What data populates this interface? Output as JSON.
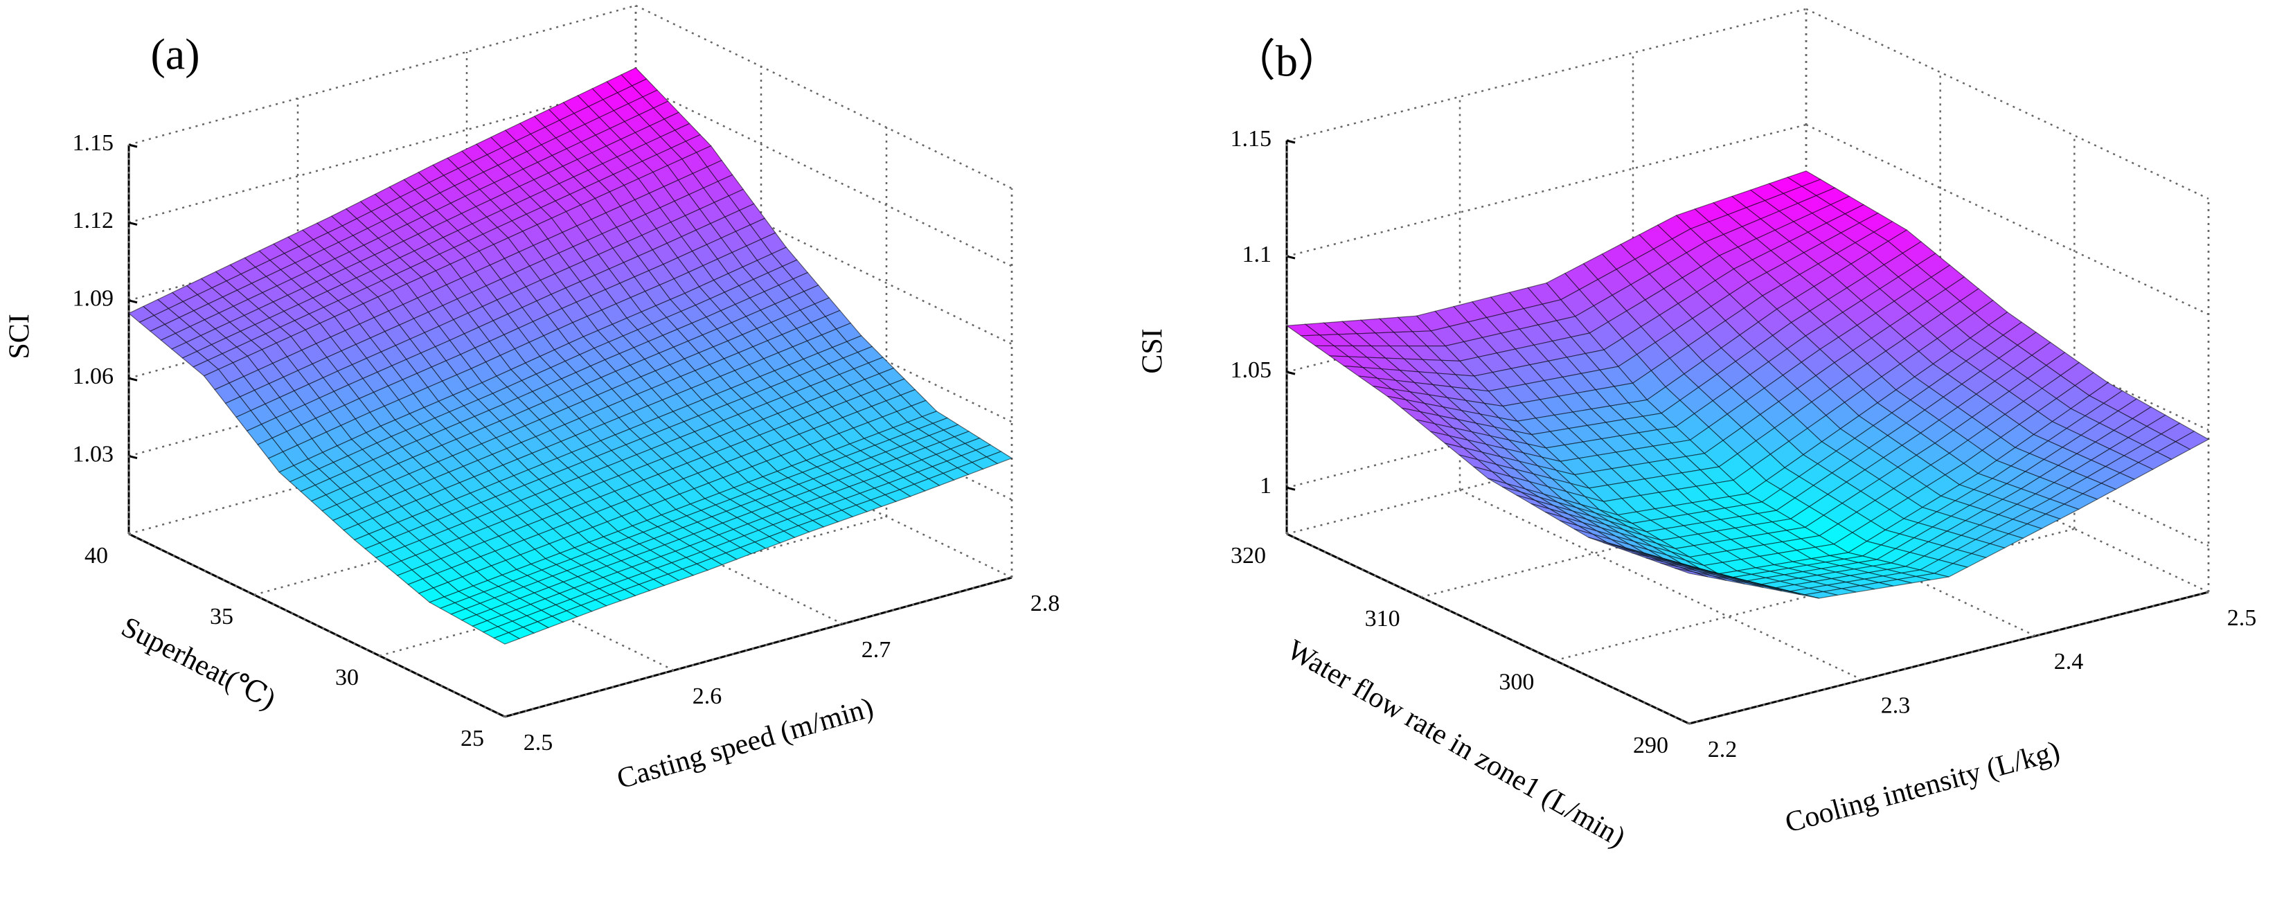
{
  "chart_data": [
    {
      "type": "surface",
      "panel_label": "(a)",
      "xlabel": "Casting speed (m/min)",
      "ylabel": "Superheat(℃)",
      "zlabel": "SCI",
      "x": [
        2.5,
        2.56,
        2.62,
        2.68,
        2.74,
        2.8
      ],
      "y": [
        25,
        28,
        31,
        34,
        37,
        40
      ],
      "z": [
        [
          1.028,
          1.032,
          1.035,
          1.039,
          1.042,
          1.046
        ],
        [
          1.03,
          1.034,
          1.038,
          1.042,
          1.046,
          1.05
        ],
        [
          1.04,
          1.045,
          1.05,
          1.055,
          1.06,
          1.065
        ],
        [
          1.052,
          1.059,
          1.065,
          1.072,
          1.078,
          1.085
        ],
        [
          1.075,
          1.082,
          1.089,
          1.096,
          1.103,
          1.11
        ],
        [
          1.085,
          1.093,
          1.101,
          1.11,
          1.118,
          1.126
        ]
      ],
      "xlim": [
        2.5,
        2.8
      ],
      "ylim": [
        25,
        40
      ],
      "zlim": [
        1.0,
        1.15
      ],
      "xticks": [
        2.5,
        2.6,
        2.7,
        2.8
      ],
      "yticks": [
        25,
        30,
        35,
        40
      ],
      "zticks": [
        1.03,
        1.06,
        1.09,
        1.12,
        1.15
      ],
      "colormap": [
        "#00ffff",
        "#ff00ff"
      ],
      "grid": true
    },
    {
      "type": "surface",
      "panel_label": "（b）",
      "xlabel": "Cooling intensity (L/kg)",
      "ylabel": "Water flow rate in zone1 (L/min)",
      "zlabel": "CSI",
      "x": [
        2.2,
        2.275,
        2.35,
        2.425,
        2.5
      ],
      "y": [
        290,
        297.5,
        305,
        312.5,
        320
      ],
      "z": [
        [
          1.045,
          1.02,
          1.015,
          1.03,
          1.046
        ],
        [
          1.04,
          1.01,
          1.005,
          1.025,
          1.05
        ],
        [
          1.045,
          1.015,
          1.01,
          1.035,
          1.06
        ],
        [
          1.06,
          1.035,
          1.03,
          1.055,
          1.075
        ],
        [
          1.07,
          1.06,
          1.06,
          1.075,
          1.08
        ]
      ],
      "xlim": [
        2.2,
        2.5
      ],
      "ylim": [
        290,
        320
      ],
      "zlim": [
        0.98,
        1.15
      ],
      "xticks": [
        2.2,
        2.3,
        2.4,
        2.5
      ],
      "yticks": [
        290,
        300,
        310,
        320
      ],
      "zticks": [
        1,
        1.05,
        1.1,
        1.15
      ],
      "colormap": [
        "#00ffff",
        "#ff00ff"
      ],
      "grid": true
    }
  ]
}
